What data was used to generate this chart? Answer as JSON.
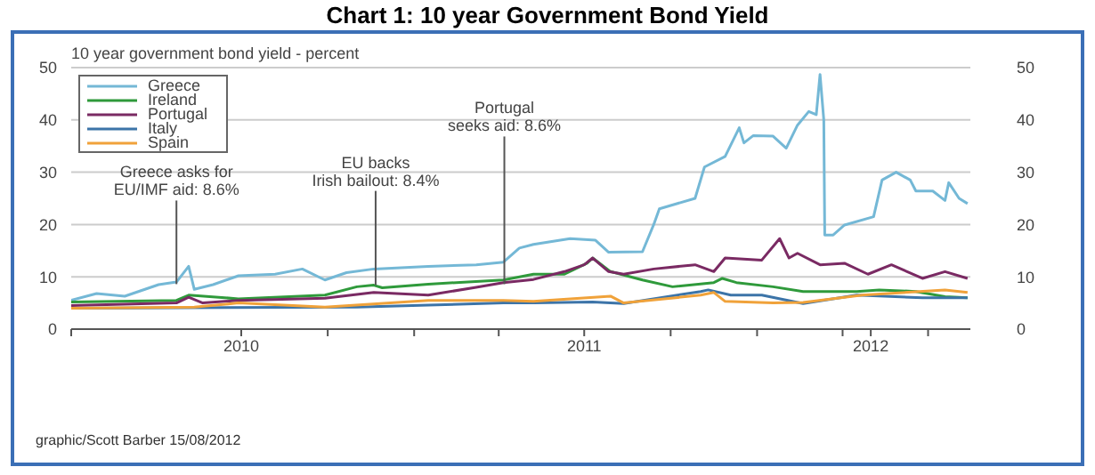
{
  "chart_data": {
    "type": "line",
    "title": "Chart 1: 10 year Government Bond Yield",
    "subtitle": "10 year government bond yield - percent",
    "xlim": [
      "2010-01-01",
      "2012-08-15"
    ],
    "xticks": [
      {
        "value": "2010-01-01",
        "label": null
      },
      {
        "value": "2010-07-01",
        "label": "2010"
      },
      {
        "value": "2010-10-01",
        "label": null
      },
      {
        "value": "2011-01-01",
        "label": null
      },
      {
        "value": "2011-04-01",
        "label": null
      },
      {
        "value": "2011-07-01",
        "label": "2011"
      },
      {
        "value": "2011-10-01",
        "label": null
      },
      {
        "value": "2012-01-01",
        "label": null
      },
      {
        "value": "2012-04-01",
        "label": null
      },
      {
        "value": "2012-05-01",
        "label": "2012"
      },
      {
        "value": "2012-07-01",
        "label": null
      }
    ],
    "ylim": [
      0,
      50
    ],
    "yticks": [
      0,
      10,
      20,
      30,
      40,
      50
    ],
    "y2lim": [
      0,
      50
    ],
    "y2ticks": [
      0,
      10,
      20,
      30,
      40,
      50
    ],
    "grid": "y",
    "legend": "top left",
    "marker": "none",
    "line_style": "solid",
    "series": [
      {
        "name": "Greece",
        "color": "#74b8d6",
        "x": [
          "2010-01-01",
          "2010-01-28",
          "2010-02-27",
          "2010-04-04",
          "2010-04-23",
          "2010-05-06",
          "2010-05-12",
          "2010-06-01",
          "2010-06-28",
          "2010-08-06",
          "2010-09-04",
          "2010-09-28",
          "2010-10-21",
          "2010-11-19",
          "2011-01-16",
          "2011-03-08",
          "2011-04-06",
          "2011-04-23",
          "2011-05-08",
          "2011-06-16",
          "2011-07-13",
          "2011-07-27",
          "2011-09-01",
          "2011-09-13",
          "2011-09-19",
          "2011-10-27",
          "2011-11-06",
          "2011-11-28",
          "2011-12-13",
          "2011-12-18",
          "2011-12-28",
          "2012-01-18",
          "2012-02-01",
          "2012-02-13",
          "2012-02-25",
          "2012-03-04",
          "2012-03-08",
          "2012-03-12",
          "2012-03-13",
          "2012-03-22",
          "2012-04-03",
          "2012-05-04",
          "2012-05-13",
          "2012-05-28",
          "2012-06-12",
          "2012-06-18",
          "2012-07-06",
          "2012-07-19",
          "2012-07-23",
          "2012-08-03",
          "2012-08-12"
        ],
        "values": [
          5.5,
          6.8,
          6.3,
          8.5,
          9,
          12,
          7.6,
          8.5,
          10.2,
          10.5,
          11.5,
          9.4,
          10.8,
          11.5,
          12,
          12.3,
          12.8,
          15.5,
          16.2,
          17.3,
          17,
          14.7,
          14.8,
          20,
          23,
          25,
          31,
          33,
          38.5,
          35.6,
          37,
          36.9,
          34.6,
          39,
          41.6,
          41,
          48.7,
          40,
          18,
          18,
          19.9,
          21.5,
          28.5,
          30,
          28.5,
          26.4,
          26.4,
          24.6,
          28,
          25,
          24
        ]
      },
      {
        "name": "Ireland",
        "color": "#2f9a3b",
        "x": [
          "2010-01-01",
          "2010-04-23",
          "2010-05-06",
          "2010-06-28",
          "2010-09-28",
          "2010-11-01",
          "2010-11-19",
          "2010-11-28",
          "2011-01-16",
          "2011-04-06",
          "2011-05-08",
          "2011-06-10",
          "2011-07-04",
          "2011-07-10",
          "2011-07-29",
          "2011-09-01",
          "2011-10-03",
          "2011-11-16",
          "2011-11-25",
          "2011-12-10",
          "2012-01-18",
          "2012-02-19",
          "2012-04-16",
          "2012-05-10",
          "2012-06-18",
          "2012-07-19",
          "2012-08-12"
        ],
        "values": [
          5.2,
          5.5,
          6.5,
          5.8,
          6.5,
          8.1,
          8.4,
          7.9,
          8.6,
          9.4,
          10.5,
          10.5,
          12.6,
          13.6,
          11,
          9.4,
          8.1,
          8.9,
          9.7,
          8.9,
          8.1,
          7.2,
          7.2,
          7.5,
          7.2,
          6.2,
          6
        ]
      },
      {
        "name": "Portugal",
        "color": "#7a2a63",
        "x": [
          "2010-01-01",
          "2010-04-23",
          "2010-05-06",
          "2010-05-21",
          "2010-06-28",
          "2010-09-28",
          "2010-11-19",
          "2011-01-16",
          "2011-03-08",
          "2011-04-06",
          "2011-05-08",
          "2011-06-10",
          "2011-07-01",
          "2011-07-10",
          "2011-07-27",
          "2011-08-12",
          "2011-09-13",
          "2011-10-27",
          "2011-11-16",
          "2011-11-28",
          "2012-01-06",
          "2012-01-25",
          "2012-02-04",
          "2012-02-13",
          "2012-03-08",
          "2012-04-03",
          "2012-04-28",
          "2012-05-23",
          "2012-06-25",
          "2012-07-19",
          "2012-08-12"
        ],
        "values": [
          4.5,
          5,
          6.1,
          5,
          5.5,
          5.9,
          7,
          6.5,
          8,
          8.9,
          9.5,
          11,
          12.3,
          13.6,
          11,
          10.5,
          11.5,
          12.3,
          11,
          13.6,
          13.2,
          17.3,
          13.6,
          14.5,
          12.3,
          12.6,
          10.5,
          12.3,
          9.7,
          11,
          9.7
        ]
      },
      {
        "name": "Italy",
        "color": "#3c74a8",
        "x": [
          "2010-01-01",
          "2010-11-01",
          "2011-01-16",
          "2011-04-06",
          "2011-05-08",
          "2011-07-10",
          "2011-08-12",
          "2011-11-02",
          "2011-11-10",
          "2011-12-04",
          "2012-01-06",
          "2012-02-19",
          "2012-04-16",
          "2012-06-25",
          "2012-08-12"
        ],
        "values": [
          4,
          4.2,
          4.6,
          5,
          5,
          5.2,
          4.9,
          7.2,
          7.5,
          6.5,
          6.5,
          4.9,
          6.5,
          6,
          6
        ]
      },
      {
        "name": "Spain",
        "color": "#f0a23a",
        "x": [
          "2010-01-01",
          "2010-05-12",
          "2010-06-28",
          "2010-09-28",
          "2011-01-16",
          "2011-04-06",
          "2011-05-08",
          "2011-07-29",
          "2011-08-12",
          "2011-11-02",
          "2011-11-16",
          "2011-11-28",
          "2012-01-18",
          "2012-02-19",
          "2012-04-22",
          "2012-07-19",
          "2012-08-12"
        ],
        "values": [
          4,
          4.2,
          5,
          4.2,
          5.5,
          5.5,
          5.3,
          6.3,
          5,
          6.5,
          7,
          5.3,
          5,
          5.1,
          6.5,
          7.5,
          7
        ]
      }
    ],
    "annotations": [
      {
        "text": "Greece asks for\nEU/IMF aid: 8.6%",
        "x": "2010-04-23",
        "y": 8.6
      },
      {
        "text": "EU backs\nIrish bailout: 8.4%",
        "x": "2010-11-21",
        "y": 8.4
      },
      {
        "text": "Portugal\nseeks aid: 8.6%",
        "x": "2011-04-07",
        "y": 8.6
      },
      "graphic/Scott Barber 15/08/2012"
    ]
  }
}
